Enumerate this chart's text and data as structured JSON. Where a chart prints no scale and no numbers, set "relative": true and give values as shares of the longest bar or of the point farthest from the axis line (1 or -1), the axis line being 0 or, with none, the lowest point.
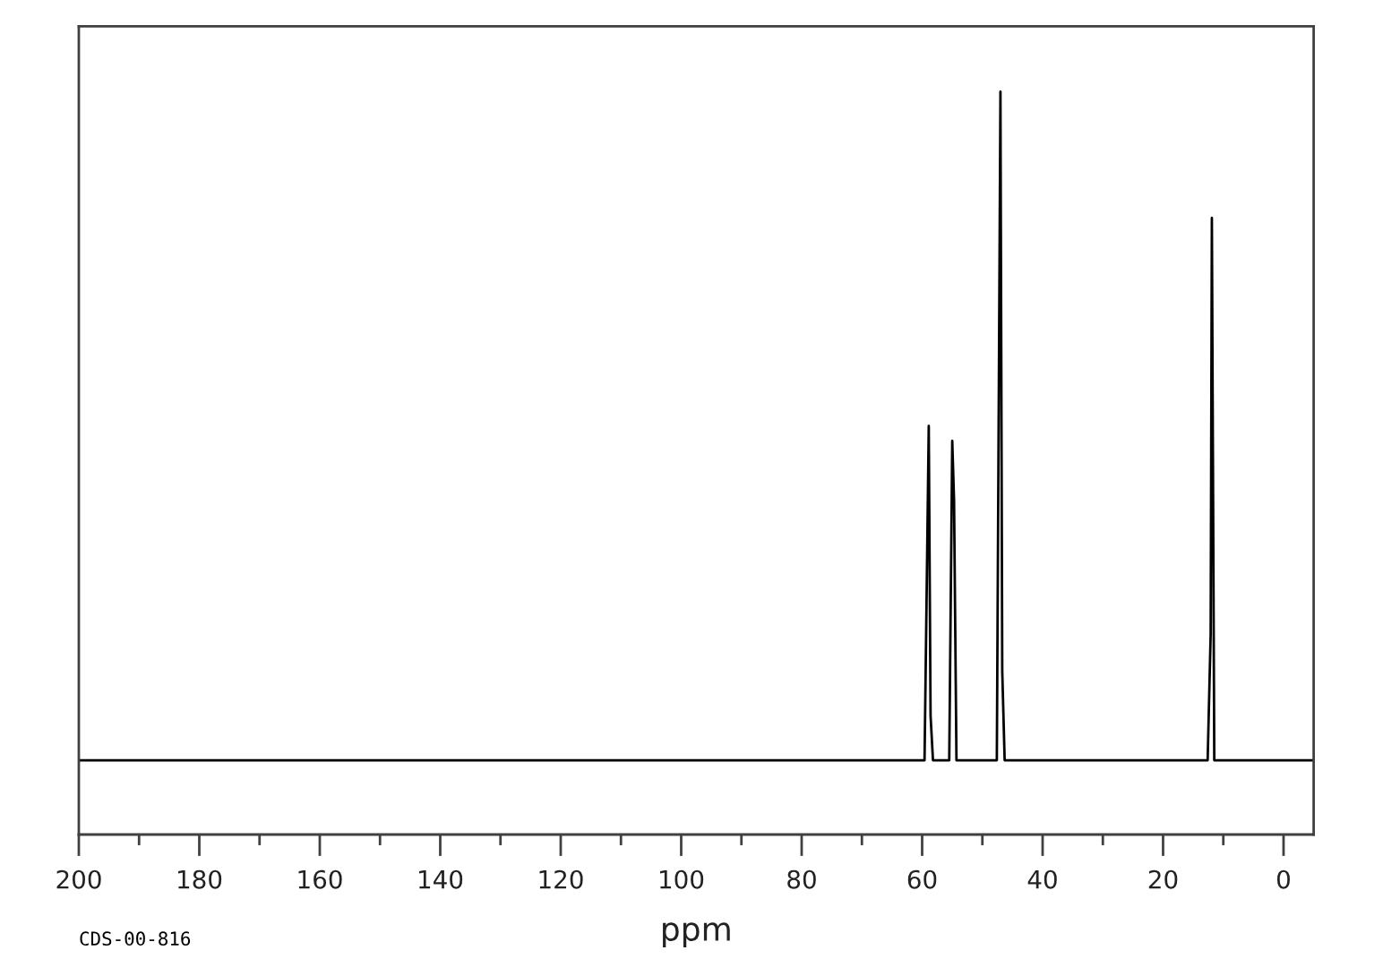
{
  "chart_data": {
    "type": "line",
    "relative": true,
    "xlabel": "ppm",
    "annotations": [
      "CDS-00-816"
    ],
    "x": [
      200,
      59.6,
      58.9,
      58.6,
      58.2,
      55.5,
      55.0,
      54.7,
      54.3,
      47.6,
      47.0,
      46.7,
      46.3,
      12.6,
      12.1,
      11.9,
      11.5,
      -5
    ],
    "values": [
      0.1,
      0.1,
      0.55,
      0.16,
      0.1,
      0.1,
      0.53,
      0.45,
      0.1,
      0.1,
      1,
      0.22,
      0.1,
      0.1,
      0.27,
      0.83,
      0.1,
      0.1
    ],
    "color": "#000000",
    "line_style": "solid",
    "marker": "none",
    "xlim": [
      200,
      -5
    ],
    "xticks": [
      200,
      {
        "value": 190,
        "label": null
      },
      180,
      {
        "value": 170,
        "label": null
      },
      160,
      {
        "value": 150,
        "label": null
      },
      140,
      {
        "value": 130,
        "label": null
      },
      120,
      {
        "value": 110,
        "label": null
      },
      100,
      {
        "value": 90,
        "label": null
      },
      80,
      {
        "value": 70,
        "label": null
      },
      60,
      {
        "value": 50,
        "label": null
      },
      40,
      {
        "value": 30,
        "label": null
      },
      20,
      {
        "value": 10,
        "label": null
      },
      0
    ],
    "tick_labels": "x"
  }
}
